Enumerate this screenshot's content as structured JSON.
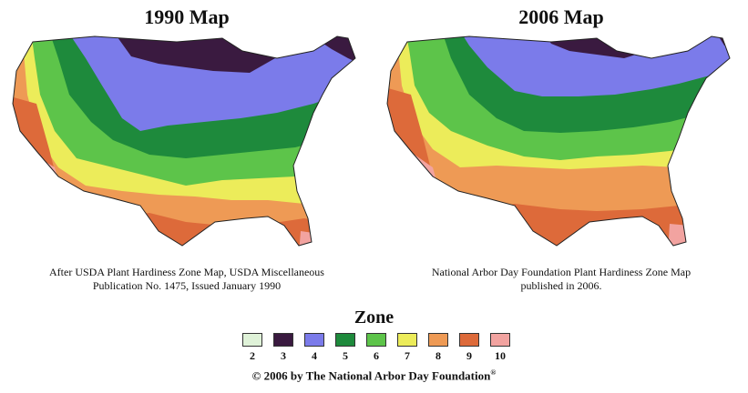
{
  "maps": [
    {
      "title": "1990 Map",
      "caption_lines": [
        "After USDA Plant Hardiness Zone Map, USDA Miscellaneous",
        "Publication No. 1475, Issued January 1990"
      ]
    },
    {
      "title": "2006 Map",
      "caption_lines": [
        "National Arbor Day Foundation Plant Hardiness Zone Map",
        "published in 2006."
      ]
    }
  ],
  "legend": {
    "title": "Zone",
    "zones": [
      {
        "label": "2",
        "color": "#dff2d8"
      },
      {
        "label": "3",
        "color": "#3a1a40"
      },
      {
        "label": "4",
        "color": "#7b7bea"
      },
      {
        "label": "5",
        "color": "#1e8a3c"
      },
      {
        "label": "6",
        "color": "#5dc44a"
      },
      {
        "label": "7",
        "color": "#ecec5a"
      },
      {
        "label": "8",
        "color": "#ee9a55"
      },
      {
        "label": "9",
        "color": "#dd6a3a"
      },
      {
        "label": "10",
        "color": "#f2a3a0"
      }
    ]
  },
  "copyright": {
    "text": "© 2006 by The National Arbor Day Foundation",
    "mark": "®"
  }
}
